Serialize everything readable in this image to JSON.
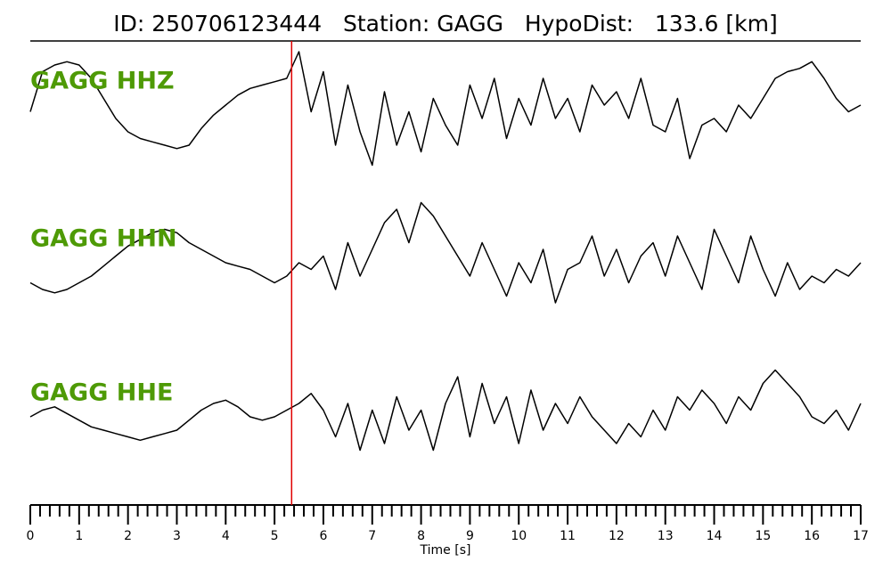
{
  "chart_data": {
    "type": "line",
    "title": "ID: 250706123444   Station: GAGG   HypoDist:   133.6 [km]",
    "xlabel": "Time [s]",
    "x": [
      0,
      0.25,
      0.5,
      0.75,
      1,
      1.25,
      1.5,
      1.75,
      2,
      2.25,
      2.5,
      2.75,
      3,
      3.25,
      3.5,
      3.75,
      4,
      4.25,
      4.5,
      4.75,
      5,
      5.25,
      5.5,
      5.75,
      6,
      6.25,
      6.5,
      6.75,
      7,
      7.25,
      7.5,
      7.75,
      8,
      8.25,
      8.5,
      8.75,
      9,
      9.25,
      9.5,
      9.75,
      10,
      10.25,
      10.5,
      10.75,
      11,
      11.25,
      11.5,
      11.75,
      12,
      12.25,
      12.5,
      12.75,
      13,
      13.25,
      13.5,
      13.75,
      14,
      14.25,
      14.5,
      14.75,
      15,
      15.25,
      15.5,
      15.75,
      16,
      16.25,
      16.5,
      16.75,
      17
    ],
    "xlim": [
      0,
      17
    ],
    "xticks": [
      0,
      1,
      2,
      3,
      4,
      5,
      6,
      7,
      8,
      9,
      10,
      11,
      12,
      13,
      14,
      15,
      16,
      17
    ],
    "xminor_ticks": [
      0.2,
      0.4,
      0.6,
      0.8,
      1.2,
      1.4,
      1.6,
      1.8,
      2.2,
      2.4,
      2.6,
      2.8,
      3.2,
      3.4,
      3.6,
      3.8,
      4.2,
      4.4,
      4.6,
      4.8,
      5.2,
      5.4,
      5.6,
      5.8,
      6.2,
      6.4,
      6.6,
      6.8,
      7.2,
      7.4,
      7.6,
      7.8,
      8.2,
      8.4,
      8.6,
      8.8,
      9.2,
      9.4,
      9.6,
      9.8,
      10.2,
      10.4,
      10.6,
      10.8,
      11.2,
      11.4,
      11.6,
      11.8,
      12.2,
      12.4,
      12.6,
      12.8,
      13.2,
      13.4,
      13.6,
      13.8,
      14.2,
      14.4,
      14.6,
      14.8,
      15.2,
      15.4,
      15.6,
      15.8,
      16.2,
      16.4,
      16.6,
      16.8
    ],
    "ylim": [
      -1,
      1
    ],
    "label_color": "#4e9a06",
    "pick": {
      "x": 5.35,
      "color": "#e00000"
    },
    "series": [
      {
        "name": "GAGG HHZ",
        "color": "#000000",
        "values": [
          -0.1,
          0.5,
          0.6,
          0.65,
          0.6,
          0.4,
          0.1,
          -0.2,
          -0.4,
          -0.5,
          -0.55,
          -0.6,
          -0.65,
          -0.6,
          -0.35,
          -0.15,
          0.0,
          0.15,
          0.25,
          0.3,
          0.35,
          0.4,
          0.8,
          -0.1,
          0.5,
          -0.6,
          0.3,
          -0.4,
          -0.9,
          0.2,
          -0.6,
          -0.1,
          -0.7,
          0.1,
          -0.3,
          -0.6,
          0.3,
          -0.2,
          0.4,
          -0.5,
          0.1,
          -0.3,
          0.4,
          -0.2,
          0.1,
          -0.4,
          0.3,
          0.0,
          0.2,
          -0.2,
          0.4,
          -0.3,
          -0.4,
          0.1,
          -0.8,
          -0.3,
          -0.2,
          -0.4,
          0.0,
          -0.2,
          0.1,
          0.4,
          0.5,
          0.55,
          0.65,
          0.4,
          0.1,
          -0.1,
          0.0
        ]
      },
      {
        "name": "GAGG HHN",
        "color": "#000000",
        "values": [
          -0.3,
          -0.4,
          -0.45,
          -0.4,
          -0.3,
          -0.2,
          -0.05,
          0.1,
          0.25,
          0.35,
          0.45,
          0.5,
          0.45,
          0.3,
          0.2,
          0.1,
          0.0,
          -0.05,
          -0.1,
          -0.2,
          -0.3,
          -0.2,
          0.0,
          -0.1,
          0.1,
          -0.4,
          0.3,
          -0.2,
          0.2,
          0.6,
          0.8,
          0.3,
          0.9,
          0.7,
          0.4,
          0.1,
          -0.2,
          0.3,
          -0.1,
          -0.5,
          0.0,
          -0.3,
          0.2,
          -0.6,
          -0.1,
          0.0,
          0.4,
          -0.2,
          0.2,
          -0.3,
          0.1,
          0.3,
          -0.2,
          0.4,
          0.0,
          -0.4,
          0.5,
          0.1,
          -0.3,
          0.4,
          -0.1,
          -0.5,
          0.0,
          -0.4,
          -0.2,
          -0.3,
          -0.1,
          -0.2,
          0.0
        ]
      },
      {
        "name": "GAGG HHE",
        "color": "#000000",
        "values": [
          0.0,
          0.1,
          0.15,
          0.05,
          -0.05,
          -0.15,
          -0.2,
          -0.25,
          -0.3,
          -0.35,
          -0.3,
          -0.25,
          -0.2,
          -0.05,
          0.1,
          0.2,
          0.25,
          0.15,
          0.0,
          -0.05,
          0.0,
          0.1,
          0.2,
          0.35,
          0.1,
          -0.3,
          0.2,
          -0.5,
          0.1,
          -0.4,
          0.3,
          -0.2,
          0.1,
          -0.5,
          0.2,
          0.6,
          -0.3,
          0.5,
          -0.1,
          0.3,
          -0.4,
          0.4,
          -0.2,
          0.2,
          -0.1,
          0.3,
          0.0,
          -0.2,
          -0.4,
          -0.1,
          -0.3,
          0.1,
          -0.2,
          0.3,
          0.1,
          0.4,
          0.2,
          -0.1,
          0.3,
          0.1,
          0.5,
          0.7,
          0.5,
          0.3,
          0.0,
          -0.1,
          0.1,
          -0.2,
          0.2
        ]
      }
    ]
  }
}
